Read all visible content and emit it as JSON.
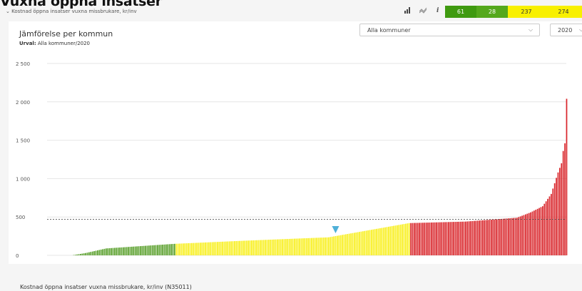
{
  "page": {
    "title": "Vuxna öppna insatser",
    "breadcrumb": "Kostnad öppna insatser vuxna missbrukare, kr/inv",
    "footer_label": "Kostnad öppna insatser vuxna missbrukare, kr/inv (N35011)"
  },
  "toolbar": {
    "icons": [
      "bar-chart-icon",
      "trend-icon",
      "info-icon"
    ],
    "info_glyph": "i",
    "counts": [
      {
        "value": "61",
        "color": "#3f9a10",
        "text_color": "#ffffff"
      },
      {
        "value": "28",
        "color": "#54a81c",
        "text_color": "#ffffff"
      },
      {
        "value": "237",
        "color": "#f8f000",
        "text_color": "#333333"
      },
      {
        "value": "274",
        "color": "#f8f000",
        "text_color": "#333333"
      }
    ]
  },
  "panel": {
    "title": "Jämförelse per kommun",
    "subtitle_label": "Urval:",
    "subtitle_value": "Alla kommuner/2020",
    "municipality_select": "Alla kommuner",
    "year_select": "2020"
  },
  "chart_data": {
    "type": "bar",
    "title": "Jämförelse per kommun",
    "xlabel": "",
    "ylabel": "",
    "ylim": [
      0,
      2500
    ],
    "yticks": [
      0,
      500,
      1000,
      1500,
      2000,
      2500
    ],
    "ytick_labels": [
      "0",
      "500",
      "1 000",
      "1 500",
      "2 000",
      "2 500"
    ],
    "reference_line": 470,
    "grid": true,
    "legend": "none",
    "n_bars": 290,
    "colors": {
      "green": "#5aa02c",
      "yellow": "#f8ef1c",
      "red": "#d9262b",
      "marker": "#4fb0d8"
    },
    "segments": [
      {
        "color": "green",
        "count": 61
      },
      {
        "color": "yellow",
        "count": 137
      },
      {
        "color": "red",
        "count": 92
      }
    ],
    "value_curve": [
      [
        0,
        0
      ],
      [
        8,
        30
      ],
      [
        20,
        90
      ],
      [
        40,
        120
      ],
      [
        60,
        150
      ],
      [
        100,
        190
      ],
      [
        150,
        235
      ],
      [
        197,
        420
      ],
      [
        230,
        440
      ],
      [
        260,
        490
      ],
      [
        268,
        560
      ],
      [
        275,
        640
      ],
      [
        280,
        800
      ],
      [
        284,
        1080
      ],
      [
        286,
        1200
      ],
      [
        287,
        1360
      ],
      [
        288,
        1460
      ],
      [
        289,
        2040
      ]
    ],
    "marker_index": 154
  }
}
